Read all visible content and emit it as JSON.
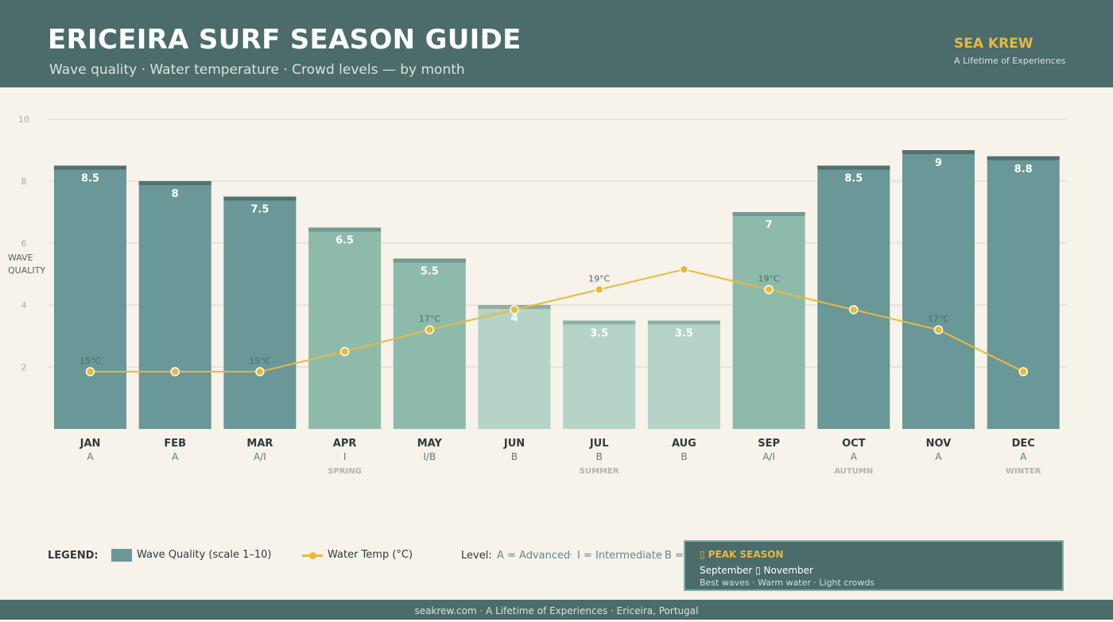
{
  "header": {
    "title": "ERICEIRA SURF SEASON GUIDE",
    "subtitle": "Wave quality · Water temperature · Crowd levels — by month",
    "brand": "SEA KREW",
    "brand_tagline": "A Lifetime of Experiences"
  },
  "colors": {
    "header_bg": "#4c6b6b",
    "background": "#f7f2ea",
    "accent_yellow": "#e8b93a",
    "bar_dark": "#6a9797",
    "bar_medium": "#8ebaaa",
    "bar_light": "#b5d3c6"
  },
  "chart_data": {
    "type": "bar",
    "ylabel": "WAVE QUALITY",
    "ylim": [
      0,
      10
    ],
    "yticks": [
      2,
      4,
      6,
      8,
      10
    ],
    "grid": true,
    "categories": [
      "JAN",
      "FEB",
      "MAR",
      "APR",
      "MAY",
      "JUN",
      "JUL",
      "AUG",
      "SEP",
      "OCT",
      "NOV",
      "DEC"
    ],
    "levels": [
      "A",
      "A",
      "A/I",
      "I",
      "I/B",
      "B",
      "B",
      "B",
      "A/I",
      "A",
      "A",
      "A"
    ],
    "seasons": [
      {
        "label": "SPRING",
        "month": "APR"
      },
      {
        "label": "SUMMER",
        "month": "JUL"
      },
      {
        "label": "AUTUMN",
        "month": "OCT"
      },
      {
        "label": "WINTER",
        "month": "DEC"
      }
    ],
    "series": [
      {
        "name": "Wave Quality (scale 1–10)",
        "type": "bar",
        "values": [
          8.5,
          8,
          7.5,
          6.5,
          5.5,
          4,
          3.5,
          3.5,
          7,
          8.5,
          9,
          8.8
        ],
        "labels": [
          "8.5",
          "8",
          "7.5",
          "6.5",
          "5.5",
          "4",
          "3.5",
          "3.5",
          "7",
          "8.5",
          "9",
          "8.8"
        ],
        "tones": [
          "dark",
          "dark",
          "dark",
          "medium",
          "medium",
          "light",
          "light",
          "light",
          "medium",
          "dark",
          "dark",
          "dark"
        ]
      },
      {
        "name": "Water Temp (°C)",
        "type": "line",
        "values": [
          1.85,
          1.85,
          1.85,
          2.5,
          3.2,
          3.85,
          4.5,
          5.15,
          4.5,
          3.85,
          3.2,
          1.85
        ],
        "point_labels": [
          "15°C",
          "",
          "15°C",
          "",
          "17°C",
          "",
          "19°C",
          "",
          "19°C",
          "",
          "17°C",
          ""
        ]
      }
    ]
  },
  "legend": {
    "label": "LEGEND:",
    "wave_quality": "Wave Quality (scale 1–10)",
    "water_temp": "Water Temp (°C)",
    "level_label": "Level:",
    "level_advanced": "A = Advanced",
    "level_intermediate": "I = Intermediate",
    "level_beginner": "B ="
  },
  "peak_season": {
    "title": "▯ PEAK SEASON",
    "months": "September ▯ November",
    "details": "Best waves · Warm water · Light crowds"
  },
  "footer": {
    "text": "seakrew.com  ·  A Lifetime of Experiences  ·  Ericeira, Portugal"
  }
}
